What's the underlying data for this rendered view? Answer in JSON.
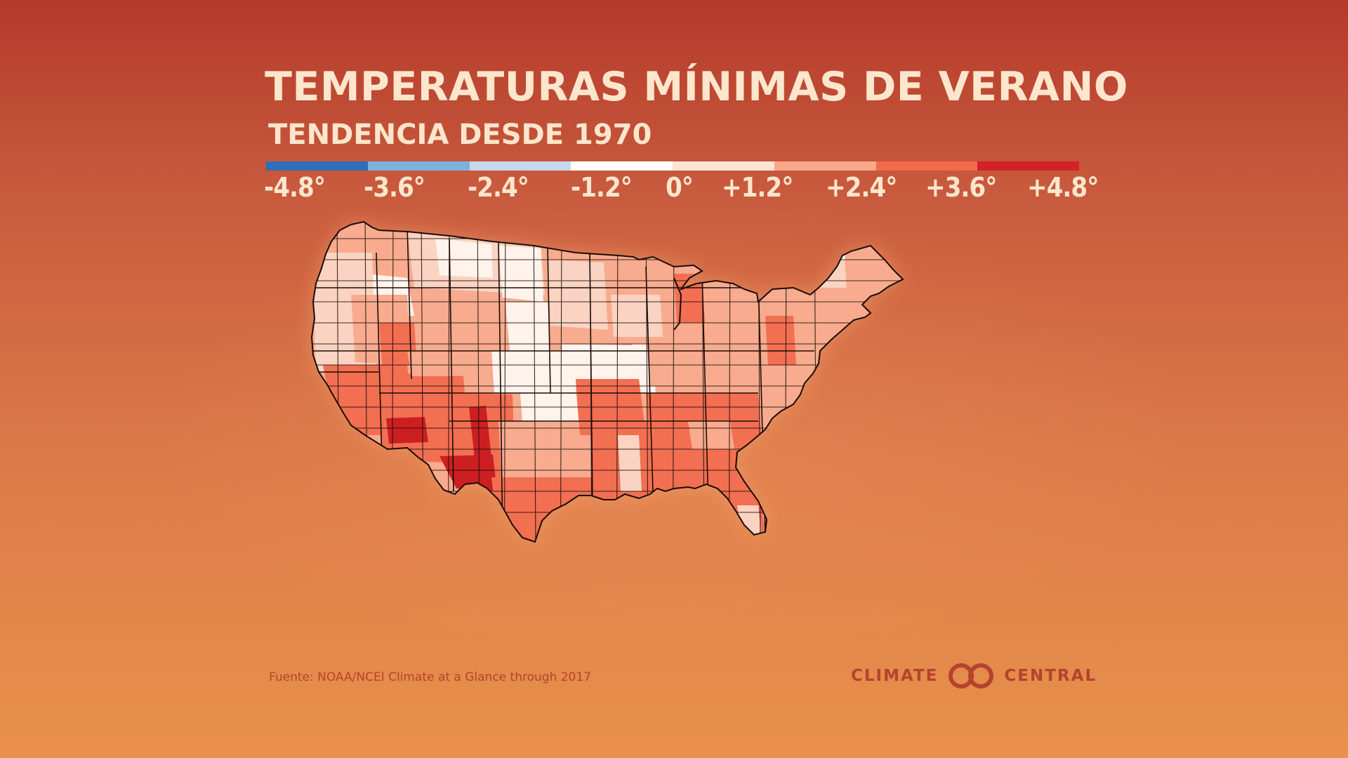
{
  "title": "TEMPERATURAS MÍNIMAS DE VERANO",
  "subtitle": "TENDENCIA DESDE 1970",
  "legend": {
    "colors": [
      "#2f6fb8",
      "#7fb1df",
      "#c4d9ec",
      "#ffffff",
      "#fde3d6",
      "#f9a88b",
      "#f36a4d",
      "#d42127"
    ],
    "ticks": [
      "-4.8°",
      "-3.6°",
      "-2.4°",
      "-1.2°",
      "0°",
      "+1.2°",
      "+2.4°",
      "+3.6°",
      "+4.8°"
    ]
  },
  "map": {
    "region_colors": {
      "near_zero": "#fff3ec",
      "slight": "#fbd3c2",
      "moderate": "#f8ab8e",
      "strong": "#f26f52",
      "extreme": "#cc1f22"
    }
  },
  "source": "Fuente: NOAA/NCEI Climate at a Glance through 2017",
  "brand": {
    "left_word": "CLIMATE",
    "right_word": "CENTRAL",
    "logo_icon": "climate-central-logo-icon"
  }
}
